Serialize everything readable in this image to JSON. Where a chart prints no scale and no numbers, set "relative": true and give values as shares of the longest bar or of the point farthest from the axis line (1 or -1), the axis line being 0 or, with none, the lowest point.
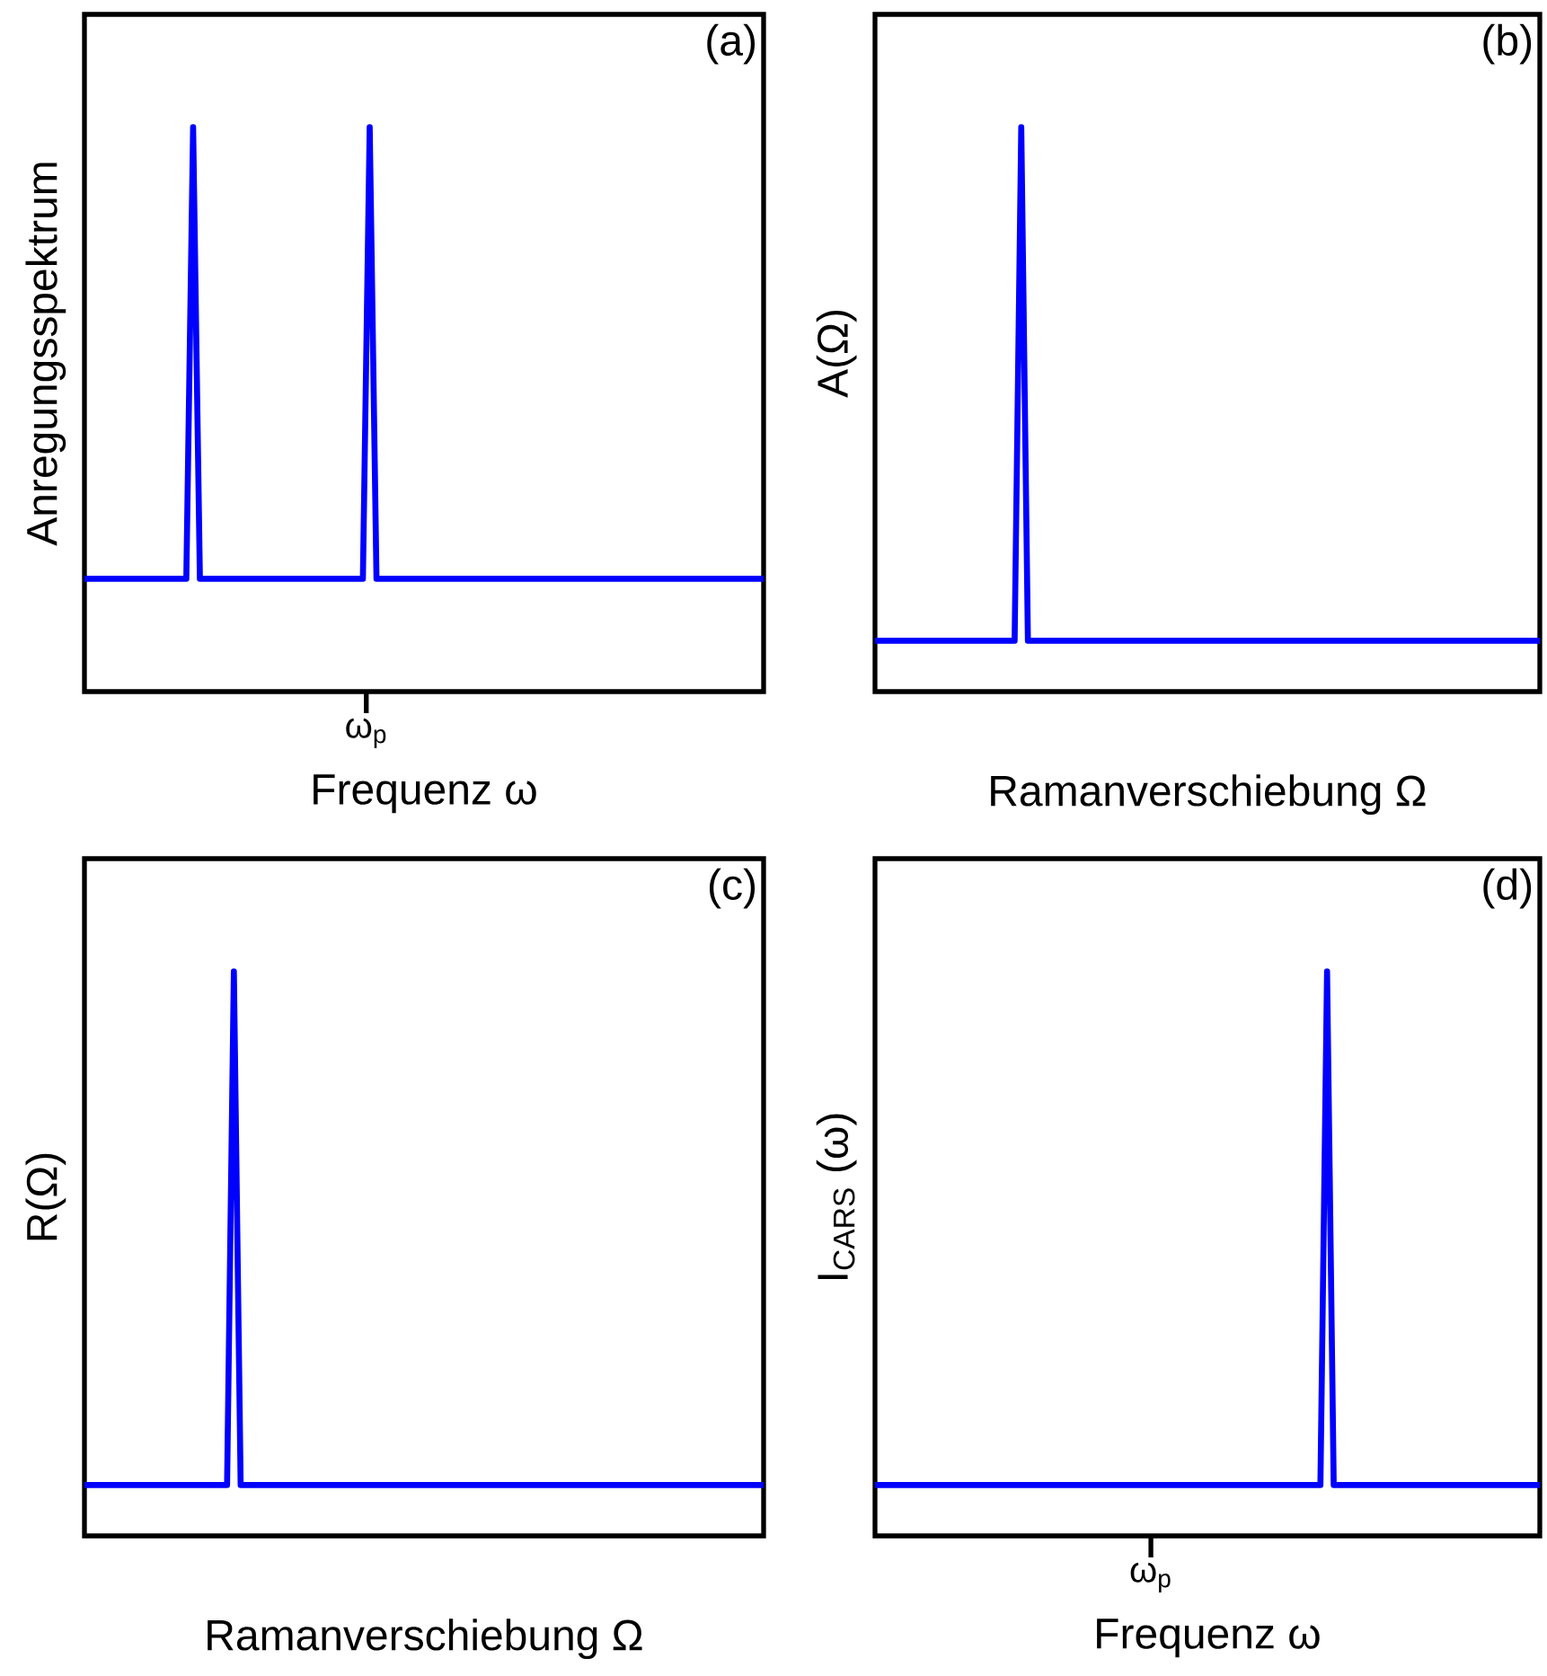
{
  "chart_data": [
    {
      "type": "line",
      "relative": true,
      "xlabel": "Frequenz ω",
      "ylabel": "Anregungsspektrum",
      "annotations": [
        "(a)",
        "ω$_{p}$"
      ],
      "categories": [
        null,
        null,
        null,
        null,
        null,
        null,
        null,
        null,
        null,
        null,
        null,
        null,
        null,
        null,
        null,
        null,
        null,
        null,
        null,
        null,
        null,
        null,
        null,
        null,
        null,
        null,
        null,
        null,
        null,
        null,
        null,
        null,
        null,
        null,
        null,
        null,
        null,
        null,
        null,
        null,
        null,
        null,
        null,
        null,
        null,
        null,
        null,
        null,
        null,
        null,
        null,
        null,
        null,
        null,
        null,
        null,
        null,
        null,
        null,
        null,
        null,
        null,
        null,
        null,
        null,
        null,
        null,
        null,
        null,
        null,
        null,
        null,
        null,
        null,
        null,
        null,
        null,
        null,
        null,
        null,
        null,
        null,
        null,
        null,
        null,
        null,
        null,
        null,
        null,
        null,
        null,
        null,
        null,
        null,
        null,
        null,
        null,
        null,
        null,
        null,
        null
      ],
      "series": [
        {
          "color": "#0000ff",
          "values": [
            0.2,
            0.2,
            0.2,
            0.2,
            0.2,
            0.2,
            0.2,
            0.2,
            0.2,
            0.2,
            0.2,
            0.2,
            0.2,
            0.2,
            0.2,
            0.2,
            1,
            0.2,
            0.2,
            0.2,
            0.2,
            0.2,
            0.2,
            0.2,
            0.2,
            0.2,
            0.2,
            0.2,
            0.2,
            0.2,
            0.2,
            0.2,
            0.2,
            0.2,
            0.2,
            0.2,
            0.2,
            0.2,
            0.2,
            0.2,
            0.2,
            0.2,
            1,
            0.2,
            0.2,
            0.2,
            0.2,
            0.2,
            0.2,
            0.2,
            0.2,
            0.2,
            0.2,
            0.2,
            0.2,
            0.2,
            0.2,
            0.2,
            0.2,
            0.2,
            0.2,
            0.2,
            0.2,
            0.2,
            0.2,
            0.2,
            0.2,
            0.2,
            0.2,
            0.2,
            0.2,
            0.2,
            0.2,
            0.2,
            0.2,
            0.2,
            0.2,
            0.2,
            0.2,
            0.2,
            0.2,
            0.2,
            0.2,
            0.2,
            0.2,
            0.2,
            0.2,
            0.2,
            0.2,
            0.2,
            0.2,
            0.2,
            0.2,
            0.2,
            0.2,
            0.2,
            0.2,
            0.2,
            0.2,
            0.2,
            0.2
          ]
        }
      ]
    },
    {
      "type": "line",
      "relative": true,
      "xlabel": "Ramanverschiebung Ω",
      "ylabel": "A(Ω)",
      "annotations": [
        "(b)"
      ],
      "categories": [
        null,
        null,
        null,
        null,
        null,
        null,
        null,
        null,
        null,
        null,
        null,
        null,
        null,
        null,
        null,
        null,
        null,
        null,
        null,
        null,
        null,
        null,
        null,
        null,
        null,
        null,
        null,
        null,
        null,
        null,
        null,
        null,
        null,
        null,
        null,
        null,
        null,
        null,
        null,
        null,
        null,
        null,
        null,
        null,
        null,
        null,
        null,
        null,
        null,
        null,
        null,
        null,
        null,
        null,
        null,
        null,
        null,
        null,
        null,
        null,
        null,
        null,
        null,
        null,
        null,
        null,
        null,
        null,
        null,
        null,
        null,
        null,
        null,
        null,
        null,
        null,
        null,
        null,
        null,
        null,
        null,
        null,
        null,
        null,
        null,
        null,
        null,
        null,
        null,
        null,
        null,
        null,
        null,
        null,
        null,
        null,
        null,
        null,
        null,
        null,
        null
      ],
      "series": [
        {
          "color": "#0000ff",
          "values": [
            0.09,
            0.09,
            0.09,
            0.09,
            0.09,
            0.09,
            0.09,
            0.09,
            0.09,
            0.09,
            0.09,
            0.09,
            0.09,
            0.09,
            0.09,
            0.09,
            0.09,
            0.09,
            0.09,
            0.09,
            0.09,
            0.09,
            1,
            0.09,
            0.09,
            0.09,
            0.09,
            0.09,
            0.09,
            0.09,
            0.09,
            0.09,
            0.09,
            0.09,
            0.09,
            0.09,
            0.09,
            0.09,
            0.09,
            0.09,
            0.09,
            0.09,
            0.09,
            0.09,
            0.09,
            0.09,
            0.09,
            0.09,
            0.09,
            0.09,
            0.09,
            0.09,
            0.09,
            0.09,
            0.09,
            0.09,
            0.09,
            0.09,
            0.09,
            0.09,
            0.09,
            0.09,
            0.09,
            0.09,
            0.09,
            0.09,
            0.09,
            0.09,
            0.09,
            0.09,
            0.09,
            0.09,
            0.09,
            0.09,
            0.09,
            0.09,
            0.09,
            0.09,
            0.09,
            0.09,
            0.09,
            0.09,
            0.09,
            0.09,
            0.09,
            0.09,
            0.09,
            0.09,
            0.09,
            0.09,
            0.09,
            0.09,
            0.09,
            0.09,
            0.09,
            0.09,
            0.09,
            0.09,
            0.09,
            0.09,
            0.09
          ]
        }
      ]
    },
    {
      "type": "line",
      "relative": true,
      "xlabel": "Ramanverschiebung Ω",
      "ylabel": "R(Ω)",
      "annotations": [
        "(c)"
      ],
      "categories": [
        null,
        null,
        null,
        null,
        null,
        null,
        null,
        null,
        null,
        null,
        null,
        null,
        null,
        null,
        null,
        null,
        null,
        null,
        null,
        null,
        null,
        null,
        null,
        null,
        null,
        null,
        null,
        null,
        null,
        null,
        null,
        null,
        null,
        null,
        null,
        null,
        null,
        null,
        null,
        null,
        null,
        null,
        null,
        null,
        null,
        null,
        null,
        null,
        null,
        null,
        null,
        null,
        null,
        null,
        null,
        null,
        null,
        null,
        null,
        null,
        null,
        null,
        null,
        null,
        null,
        null,
        null,
        null,
        null,
        null,
        null,
        null,
        null,
        null,
        null,
        null,
        null,
        null,
        null,
        null,
        null,
        null,
        null,
        null,
        null,
        null,
        null,
        null,
        null,
        null,
        null,
        null,
        null,
        null,
        null,
        null,
        null,
        null,
        null,
        null,
        null
      ],
      "series": [
        {
          "color": "#0000ff",
          "values": [
            0.09,
            0.09,
            0.09,
            0.09,
            0.09,
            0.09,
            0.09,
            0.09,
            0.09,
            0.09,
            0.09,
            0.09,
            0.09,
            0.09,
            0.09,
            0.09,
            0.09,
            0.09,
            0.09,
            0.09,
            0.09,
            0.09,
            1,
            0.09,
            0.09,
            0.09,
            0.09,
            0.09,
            0.09,
            0.09,
            0.09,
            0.09,
            0.09,
            0.09,
            0.09,
            0.09,
            0.09,
            0.09,
            0.09,
            0.09,
            0.09,
            0.09,
            0.09,
            0.09,
            0.09,
            0.09,
            0.09,
            0.09,
            0.09,
            0.09,
            0.09,
            0.09,
            0.09,
            0.09,
            0.09,
            0.09,
            0.09,
            0.09,
            0.09,
            0.09,
            0.09,
            0.09,
            0.09,
            0.09,
            0.09,
            0.09,
            0.09,
            0.09,
            0.09,
            0.09,
            0.09,
            0.09,
            0.09,
            0.09,
            0.09,
            0.09,
            0.09,
            0.09,
            0.09,
            0.09,
            0.09,
            0.09,
            0.09,
            0.09,
            0.09,
            0.09,
            0.09,
            0.09,
            0.09,
            0.09,
            0.09,
            0.09,
            0.09,
            0.09,
            0.09,
            0.09,
            0.09,
            0.09,
            0.09,
            0.09,
            0.09
          ]
        }
      ]
    },
    {
      "type": "line",
      "relative": true,
      "xlabel": "Frequenz ω",
      "ylabel": "I$_{CARS}$ (ω)",
      "annotations": [
        "(d)",
        "ω$_{p}$"
      ],
      "categories": [
        null,
        null,
        null,
        null,
        null,
        null,
        null,
        null,
        null,
        null,
        null,
        null,
        null,
        null,
        null,
        null,
        null,
        null,
        null,
        null,
        null,
        null,
        null,
        null,
        null,
        null,
        null,
        null,
        null,
        null,
        null,
        null,
        null,
        null,
        null,
        null,
        null,
        null,
        null,
        null,
        null,
        null,
        null,
        null,
        null,
        null,
        null,
        null,
        null,
        null,
        null,
        null,
        null,
        null,
        null,
        null,
        null,
        null,
        null,
        null,
        null,
        null,
        null,
        null,
        null,
        null,
        null,
        null,
        null,
        null,
        null,
        null,
        null,
        null,
        null,
        null,
        null,
        null,
        null,
        null,
        null,
        null,
        null,
        null,
        null,
        null,
        null,
        null,
        null,
        null,
        null,
        null,
        null,
        null,
        null,
        null,
        null,
        null,
        null,
        null,
        null
      ],
      "series": [
        {
          "color": "#0000ff",
          "values": [
            0.09,
            0.09,
            0.09,
            0.09,
            0.09,
            0.09,
            0.09,
            0.09,
            0.09,
            0.09,
            0.09,
            0.09,
            0.09,
            0.09,
            0.09,
            0.09,
            0.09,
            0.09,
            0.09,
            0.09,
            0.09,
            0.09,
            0.09,
            0.09,
            0.09,
            0.09,
            0.09,
            0.09,
            0.09,
            0.09,
            0.09,
            0.09,
            0.09,
            0.09,
            0.09,
            0.09,
            0.09,
            0.09,
            0.09,
            0.09,
            0.09,
            0.09,
            0.09,
            0.09,
            0.09,
            0.09,
            0.09,
            0.09,
            0.09,
            0.09,
            0.09,
            0.09,
            0.09,
            0.09,
            0.09,
            0.09,
            0.09,
            0.09,
            0.09,
            0.09,
            0.09,
            0.09,
            0.09,
            0.09,
            0.09,
            0.09,
            0.09,
            0.09,
            1,
            0.09,
            0.09,
            0.09,
            0.09,
            0.09,
            0.09,
            0.09,
            0.09,
            0.09,
            0.09,
            0.09,
            0.09,
            0.09,
            0.09,
            0.09,
            0.09,
            0.09,
            0.09,
            0.09,
            0.09,
            0.09,
            0.09,
            0.09,
            0.09,
            0.09,
            0.09,
            0.09,
            0.09,
            0.09,
            0.09,
            0.09,
            0.09
          ]
        }
      ]
    }
  ]
}
